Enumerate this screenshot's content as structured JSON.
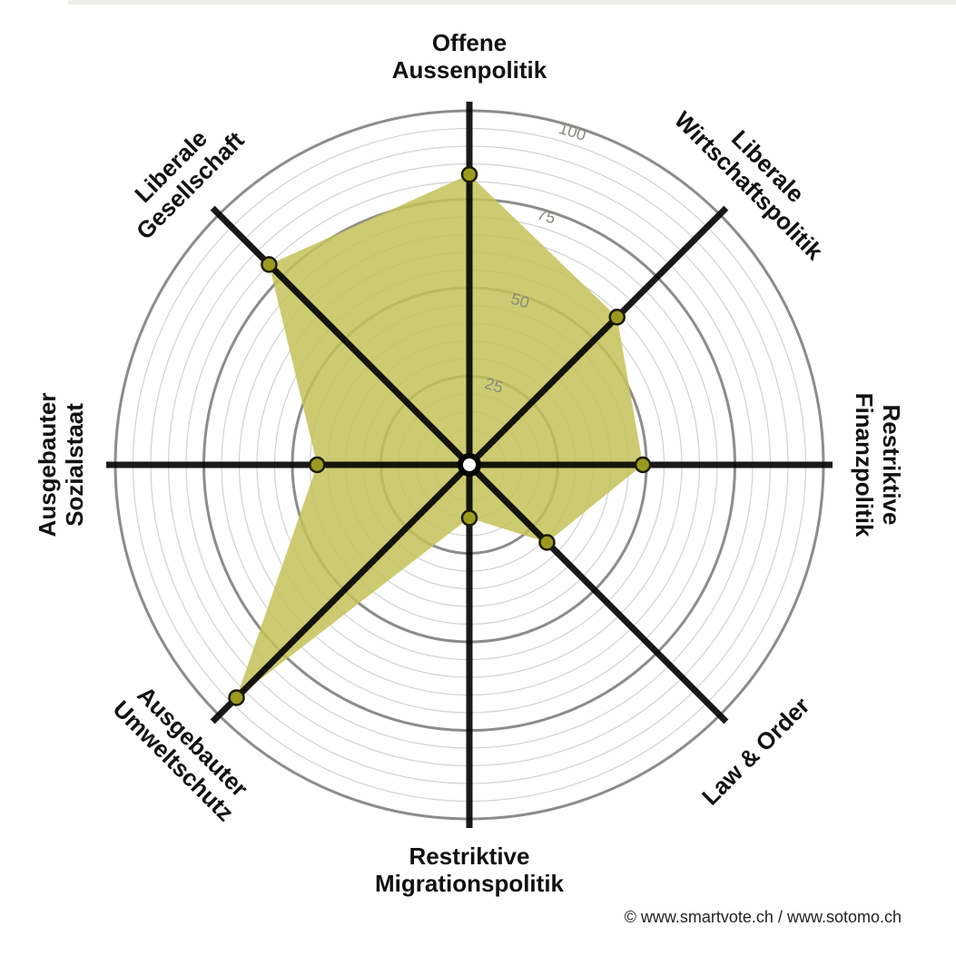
{
  "chart_data": {
    "type": "radar",
    "axes": [
      {
        "name": "offene-aussenpolitik",
        "label": [
          "Offene",
          "Aussenpolitik"
        ],
        "value": 82
      },
      {
        "name": "liberale-wirtschaftspolitik",
        "label": [
          "Liberale",
          "Wirtschaftspolitik"
        ],
        "value": 59
      },
      {
        "name": "restriktive-finanzpolitik",
        "label": [
          "Restriktive",
          "Finanzpolitik"
        ],
        "value": 49
      },
      {
        "name": "law-and-order",
        "label": [
          "Law & Order"
        ],
        "value": 31
      },
      {
        "name": "restriktive-migrationspolitik",
        "label": [
          "Restriktive",
          "Migrationspolitik"
        ],
        "value": 15
      },
      {
        "name": "ausgebauter-umweltschutz",
        "label": [
          "Ausgebauter",
          "Umweltschutz"
        ],
        "value": 93
      },
      {
        "name": "ausgebauter-sozialstaat",
        "label": [
          "Ausgebauter",
          "Sozialstaat"
        ],
        "value": 43
      },
      {
        "name": "liberale-gesellschaft",
        "label": [
          "Liberale",
          "Gesellschaft"
        ],
        "value": 80
      }
    ],
    "range": [
      0,
      100
    ],
    "ticks": [
      25,
      50,
      75,
      100
    ],
    "tick_labels": [
      "25",
      "50",
      "75",
      "100"
    ],
    "minor_grid_step": 5,
    "colors": {
      "fill": "#c4c258",
      "marker": "#9c9a1e",
      "axis": "#000000",
      "major_grid": "#8c8c8c",
      "minor_grid": "#d2d2d2"
    }
  },
  "footer": {
    "credit": "© www.smartvote.ch / www.sotomo.ch"
  }
}
